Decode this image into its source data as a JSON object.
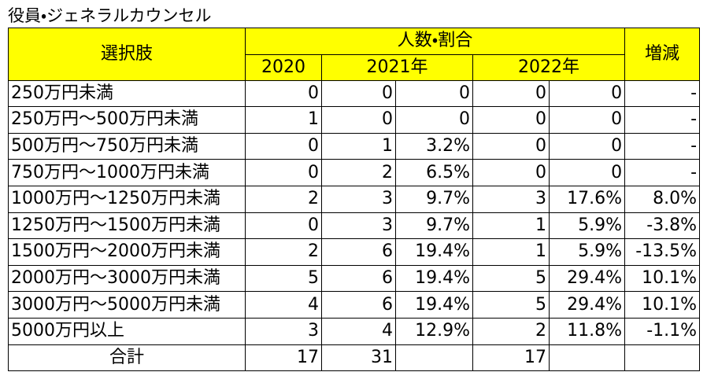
{
  "title": "役員・ジェネラルカウンセル",
  "table": {
    "header": {
      "choice": "選択肢",
      "group": "人数・割合",
      "change": "増減",
      "years": [
        "2020",
        "2021年",
        "2022年"
      ]
    },
    "rows": [
      [
        "250万円未満",
        "0",
        "0",
        "0",
        "0",
        "0",
        "-"
      ],
      [
        "250万円～500万円未満",
        "1",
        "0",
        "0",
        "0",
        "0",
        "-"
      ],
      [
        "500万円～750万円未満",
        "0",
        "1",
        "3.2%",
        "0",
        "0",
        "-"
      ],
      [
        "750万円～1000万円未満",
        "0",
        "2",
        "6.5%",
        "0",
        "0",
        "-"
      ],
      [
        "1000万円～1250万円未満",
        "2",
        "3",
        "9.7%",
        "3",
        "17.6%",
        "8.0%"
      ],
      [
        "1250万円～1500万円未満",
        "0",
        "3",
        "9.7%",
        "1",
        "5.9%",
        "-3.8%"
      ],
      [
        "1500万円～2000万円未満",
        "2",
        "6",
        "19.4%",
        "1",
        "5.9%",
        "-13.5%"
      ],
      [
        "2000万円～3000万円未満",
        "5",
        "6",
        "19.4%",
        "5",
        "29.4%",
        "10.1%"
      ],
      [
        "3000万円～5000万円未満",
        "4",
        "6",
        "19.4%",
        "5",
        "29.4%",
        "10.1%"
      ],
      [
        "5000万円以上",
        "3",
        "4",
        "12.9%",
        "2",
        "11.8%",
        "-1.1%"
      ]
    ],
    "total": [
      "合計",
      "17",
      "31",
      null,
      "17",
      null,
      null
    ]
  }
}
